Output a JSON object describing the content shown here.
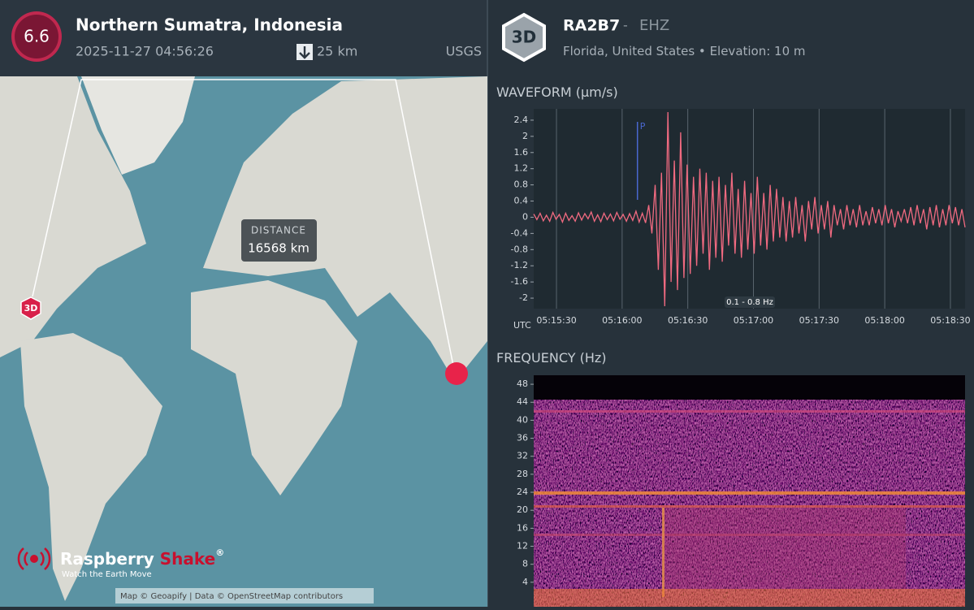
{
  "event": {
    "magnitude": "6.6",
    "region": "Northern Sumatra, Indonesia",
    "time": "2025-11-27 04:56:26",
    "depth": "25 km",
    "source": "USGS"
  },
  "map": {
    "distance_label": "DISTANCE",
    "distance": "16568 km",
    "station_badge": "3D",
    "logo": {
      "name": "Raspberry",
      "name2": "Shake",
      "mark": "®",
      "tagline": "Watch the Earth Move"
    },
    "attribution": "Map © Geoapify | Data © OpenStreetMap contributors"
  },
  "station": {
    "badge": "3D",
    "code": "RA2B7",
    "separator": "-",
    "channel": "EHZ",
    "location": "Florida, United States",
    "bullet": "•",
    "elevation": "Elevation: 10 m"
  },
  "waveform": {
    "type": "line",
    "title": "WAVEFORM",
    "unit": "(μm/s)",
    "color": "#f06a80",
    "ylim": [
      -2.26,
      2.68
    ],
    "yticks": [
      2.4,
      2,
      1.6,
      1.2,
      0.8,
      0.4,
      0,
      -0.4,
      -0.8,
      -1.2,
      -1.6,
      -2
    ],
    "xlim": [
      19.6,
      216.7
    ],
    "xticks": [
      {
        "value": 30,
        "label": "05:15:30"
      },
      {
        "value": 60,
        "label": "05:16:00"
      },
      {
        "value": 90,
        "label": "05:16:30"
      },
      {
        "value": 120,
        "label": "05:17:00"
      },
      {
        "value": 150,
        "label": "05:17:30"
      },
      {
        "value": 180,
        "label": "05:18:00"
      },
      {
        "value": 210,
        "label": "05:18:30"
      }
    ],
    "x_label": "UTC",
    "filter": "0.1 - 0.8 Hz",
    "p_label": "P",
    "p_arrival": 67,
    "values": [
      0.08,
      -0.06,
      0.1,
      -0.09,
      0.05,
      -0.1,
      0.12,
      -0.05,
      0.07,
      -0.12,
      0.1,
      -0.08,
      0.04,
      -0.1,
      0.11,
      -0.07,
      0.09,
      -0.04,
      0.13,
      -0.1,
      0.06,
      -0.11,
      0.1,
      -0.06,
      0.08,
      -0.09,
      0.12,
      -0.05,
      0.07,
      -0.1,
      0.09,
      -0.08,
      0.15,
      -0.12,
      0.1,
      -0.14,
      0.3,
      -0.4,
      0.8,
      -1.3,
      1.1,
      -2.2,
      2.6,
      -1.6,
      1.4,
      -1.8,
      2.1,
      -1.5,
      1.3,
      -1.4,
      1.0,
      -1.2,
      1.2,
      -0.9,
      1.1,
      -1.3,
      0.9,
      -1.0,
      1.0,
      -1.1,
      0.8,
      -0.7,
      1.1,
      -0.9,
      0.7,
      -1.0,
      0.9,
      -0.8,
      0.6,
      -0.9,
      1.0,
      -0.7,
      0.6,
      -0.8,
      0.8,
      -0.6,
      0.7,
      -0.5,
      0.5,
      -0.6,
      0.4,
      -0.5,
      0.5,
      -0.4,
      0.3,
      -0.6,
      0.4,
      -0.3,
      0.5,
      -0.4,
      0.3,
      -0.3,
      0.4,
      -0.5,
      0.3,
      -0.2,
      0.2,
      -0.3,
      0.3,
      -0.2,
      0.2,
      -0.25,
      0.3,
      -0.2,
      0.15,
      -0.2,
      0.25,
      -0.15,
      0.2,
      -0.2,
      0.3,
      -0.15,
      0.2,
      -0.25,
      0.15,
      -0.1,
      0.2,
      -0.15,
      0.25,
      -0.2,
      0.3,
      -0.15,
      0.2,
      -0.3,
      0.25,
      -0.2,
      0.3,
      -0.25,
      0.2,
      -0.2,
      0.3,
      -0.15,
      0.25,
      -0.2,
      0.2,
      -0.25
    ]
  },
  "frequency": {
    "title": "FREQUENCY",
    "unit": "(Hz)",
    "ylim": [
      0,
      50
    ],
    "yticks": [
      48,
      44,
      40,
      36,
      32,
      28,
      24,
      20,
      16,
      12,
      8,
      4
    ]
  }
}
